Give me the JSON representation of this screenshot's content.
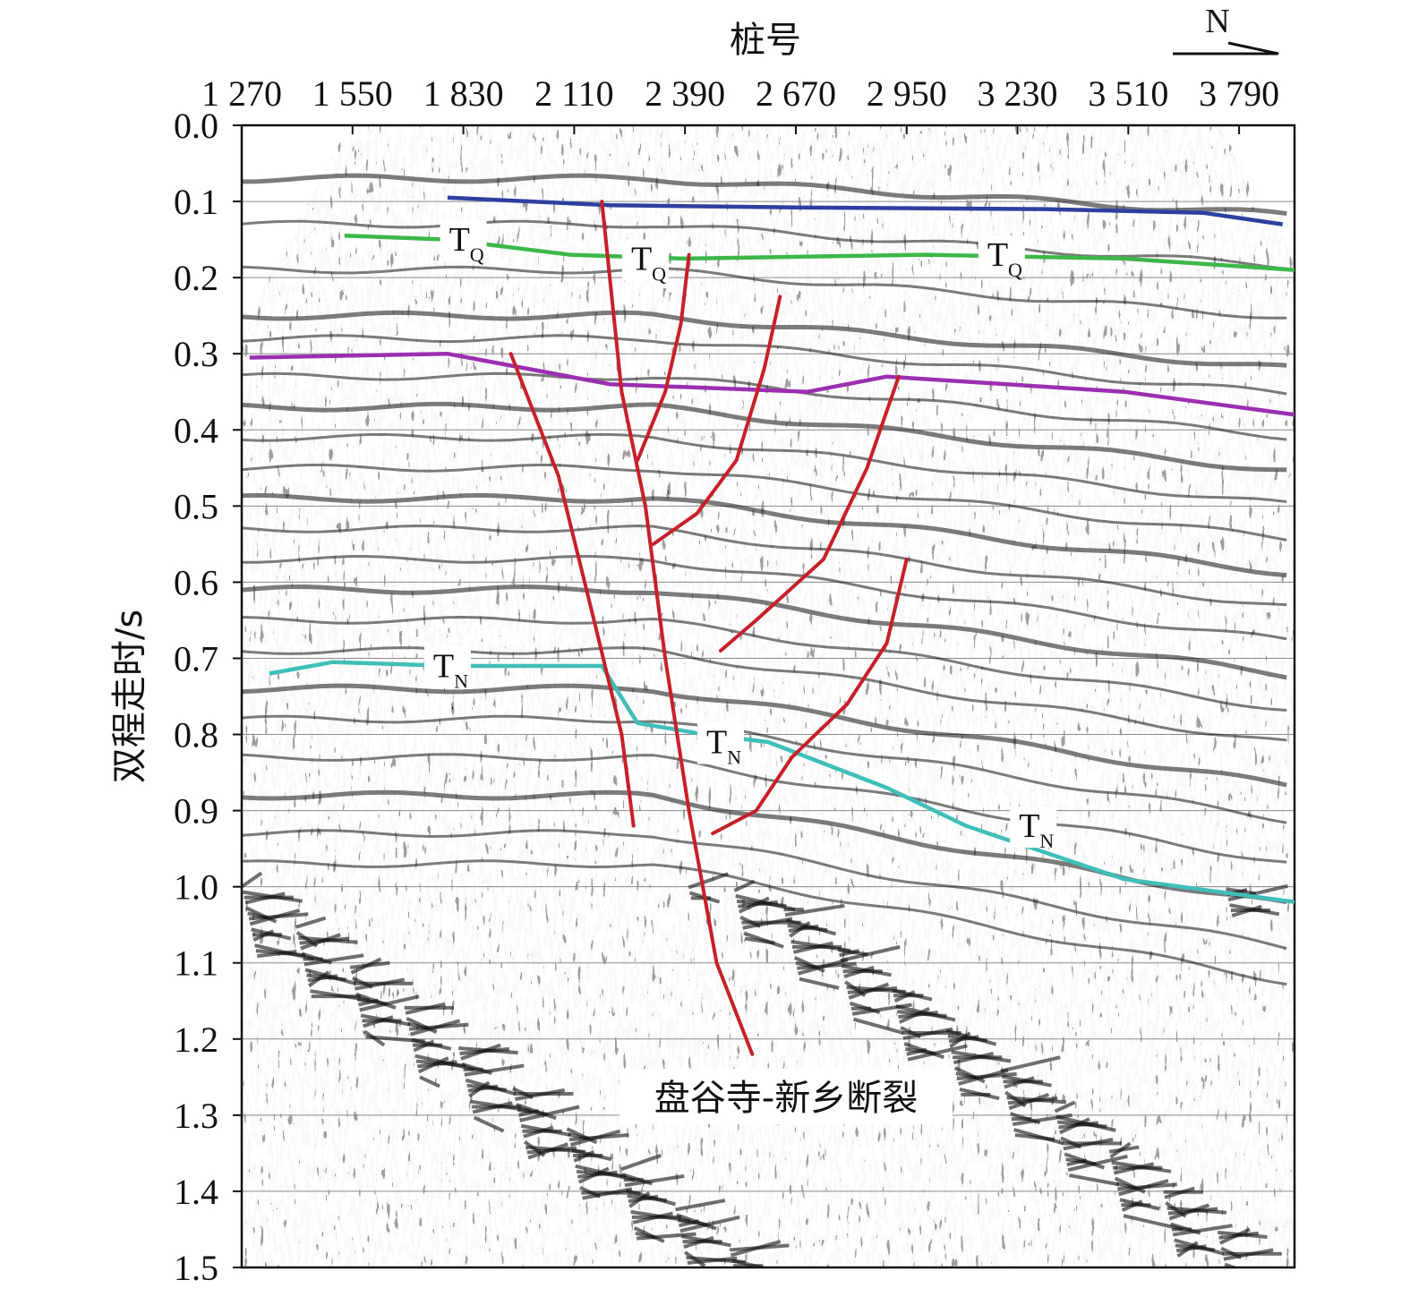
{
  "figure": {
    "top_axis_title": "桩号",
    "left_axis_title": "双程走时/s",
    "north_arrow_label": "N",
    "fault_name": "盘谷寺-新乡断裂"
  },
  "chart_data": {
    "type": "seismic-section",
    "x_axis": {
      "label": "桩号",
      "ticks": [
        1270,
        1550,
        1830,
        2110,
        2390,
        2670,
        2950,
        3230,
        3510,
        3790
      ],
      "tick_labels": [
        "1 270",
        "1 550",
        "1 830",
        "2 110",
        "2 390",
        "2 670",
        "2 950",
        "3 230",
        "3 510",
        "3 790"
      ],
      "range": [
        1270,
        3930
      ]
    },
    "y_axis": {
      "label": "双程走时/s",
      "ticks": [
        0.0,
        0.1,
        0.2,
        0.3,
        0.4,
        0.5,
        0.6,
        0.7,
        0.8,
        0.9,
        1.0,
        1.1,
        1.2,
        1.3,
        1.4,
        1.5
      ],
      "tick_labels": [
        "0.0",
        "0.1",
        "0.2",
        "0.3",
        "0.4",
        "0.5",
        "0.6",
        "0.7",
        "0.8",
        "0.9",
        "1.0",
        "1.1",
        "1.2",
        "1.3",
        "1.4",
        "1.5"
      ],
      "range": [
        0.0,
        1.5
      ],
      "inverted": true,
      "gridlines": true
    },
    "horizons": [
      {
        "color": "#2d3fa0",
        "points": [
          [
            1790,
            0.095
          ],
          [
            2200,
            0.105
          ],
          [
            2700,
            0.108
          ],
          [
            3300,
            0.11
          ],
          [
            3700,
            0.115
          ],
          [
            3900,
            0.13
          ]
        ]
      },
      {
        "name": "TQ",
        "color": "#3cb84a",
        "points": [
          [
            1530,
            0.145
          ],
          [
            1790,
            0.15
          ],
          [
            2100,
            0.17
          ],
          [
            2390,
            0.175
          ],
          [
            3000,
            0.17
          ],
          [
            3500,
            0.175
          ],
          [
            3930,
            0.19
          ]
        ]
      },
      {
        "color": "#9b2fb0",
        "points": [
          [
            1290,
            0.305
          ],
          [
            1790,
            0.3
          ],
          [
            2200,
            0.34
          ],
          [
            2700,
            0.35
          ],
          [
            2900,
            0.33
          ],
          [
            3500,
            0.35
          ],
          [
            3930,
            0.38
          ]
        ]
      },
      {
        "name": "TN",
        "color": "#3fbfb8",
        "points": [
          [
            1340,
            0.72
          ],
          [
            1500,
            0.705
          ],
          [
            1800,
            0.71
          ],
          [
            2180,
            0.71
          ],
          [
            2270,
            0.785
          ],
          [
            2440,
            0.8
          ],
          [
            2600,
            0.81
          ],
          [
            2900,
            0.87
          ],
          [
            3100,
            0.92
          ],
          [
            3500,
            0.99
          ],
          [
            3930,
            1.02
          ]
        ]
      }
    ],
    "faults": [
      {
        "color": "#c8202a",
        "points": [
          [
            2180,
            0.1
          ],
          [
            2230,
            0.35
          ],
          [
            2290,
            0.5
          ],
          [
            2340,
            0.7
          ],
          [
            2400,
            0.9
          ],
          [
            2470,
            1.1
          ],
          [
            2560,
            1.22
          ]
        ]
      },
      {
        "color": "#c8202a",
        "points": [
          [
            1950,
            0.3
          ],
          [
            2070,
            0.46
          ],
          [
            2160,
            0.65
          ],
          [
            2230,
            0.8
          ],
          [
            2260,
            0.92
          ]
        ]
      },
      {
        "color": "#c8202a",
        "points": [
          [
            2400,
            0.17
          ],
          [
            2380,
            0.26
          ],
          [
            2340,
            0.35
          ],
          [
            2270,
            0.44
          ]
        ]
      },
      {
        "color": "#c8202a",
        "points": [
          [
            2630,
            0.225
          ],
          [
            2590,
            0.32
          ],
          [
            2520,
            0.44
          ],
          [
            2420,
            0.51
          ],
          [
            2310,
            0.55
          ]
        ]
      },
      {
        "color": "#c8202a",
        "points": [
          [
            2930,
            0.33
          ],
          [
            2850,
            0.45
          ],
          [
            2740,
            0.57
          ],
          [
            2570,
            0.65
          ],
          [
            2480,
            0.69
          ]
        ]
      },
      {
        "color": "#c8202a",
        "points": [
          [
            2950,
            0.57
          ],
          [
            2900,
            0.68
          ],
          [
            2800,
            0.76
          ],
          [
            2660,
            0.83
          ],
          [
            2570,
            0.9
          ],
          [
            2460,
            0.93
          ]
        ]
      }
    ],
    "horizon_labels": [
      {
        "text": "T",
        "sub": "Q",
        "x": 1830,
        "y": 0.16
      },
      {
        "text": "T",
        "sub": "Q",
        "x": 2290,
        "y": 0.185
      },
      {
        "text": "T",
        "sub": "Q",
        "x": 3190,
        "y": 0.18
      },
      {
        "text": "T",
        "sub": "N",
        "x": 1790,
        "y": 0.72
      },
      {
        "text": "T",
        "sub": "N",
        "x": 2480,
        "y": 0.82
      },
      {
        "text": "T",
        "sub": "N",
        "x": 3270,
        "y": 0.93
      }
    ]
  }
}
